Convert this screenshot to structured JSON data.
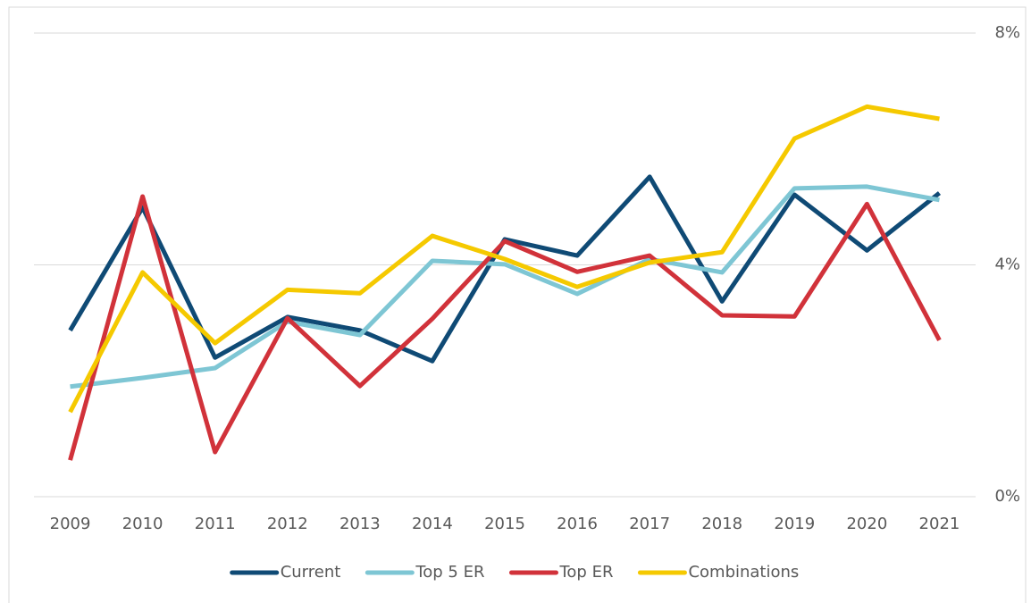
{
  "chart_data": {
    "type": "line",
    "categories": [
      "2009",
      "2010",
      "2011",
      "2012",
      "2013",
      "2014",
      "2015",
      "2016",
      "2017",
      "2018",
      "2019",
      "2020",
      "2021"
    ],
    "series": [
      {
        "name": "Current",
        "color": "#0f4a75",
        "values": [
          2.87,
          4.99,
          2.4,
          3.1,
          2.87,
          2.34,
          4.44,
          4.16,
          5.52,
          3.37,
          5.21,
          4.25,
          5.24
        ]
      },
      {
        "name": "Top 5 ER",
        "color": "#7ec6d4",
        "values": [
          1.9,
          2.05,
          2.22,
          3.02,
          2.79,
          4.07,
          4.01,
          3.5,
          4.1,
          3.87,
          5.32,
          5.35,
          5.12
        ]
      },
      {
        "name": "Top ER",
        "color": "#d1323a",
        "values": [
          0.63,
          5.18,
          0.77,
          3.08,
          1.91,
          3.07,
          4.41,
          3.88,
          4.16,
          3.13,
          3.11,
          5.05,
          2.7
        ]
      },
      {
        "name": "Combinations",
        "color": "#f5c900",
        "values": [
          1.46,
          3.87,
          2.65,
          3.57,
          3.51,
          4.5,
          4.1,
          3.62,
          4.04,
          4.22,
          6.18,
          6.73,
          6.52
        ]
      }
    ],
    "ylim": [
      0,
      8
    ],
    "yticks": [
      {
        "value": 0,
        "label": "0%"
      },
      {
        "value": 4,
        "label": "4%"
      },
      {
        "value": 8,
        "label": "8%"
      }
    ],
    "grid": true,
    "legend": "bottom"
  }
}
